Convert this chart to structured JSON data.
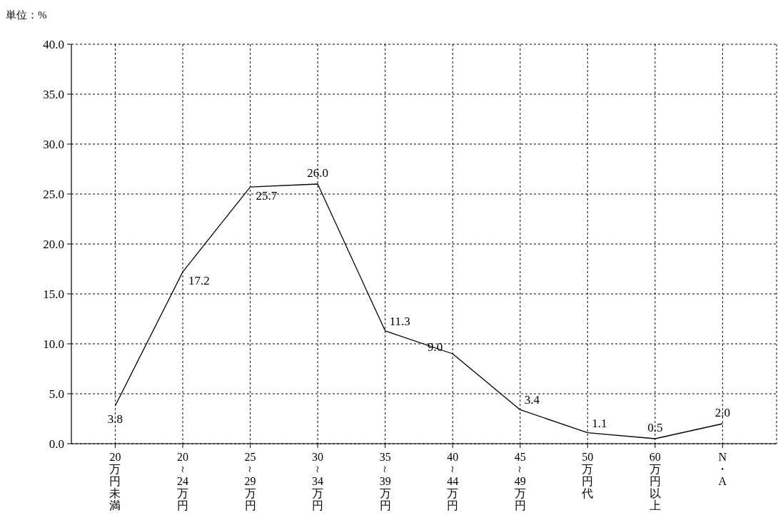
{
  "chart_data": {
    "type": "line",
    "ylabel": "単位：%",
    "categories": [
      "20万円未満",
      "20～24万円",
      "25～29万円",
      "30～34万円",
      "35～39万円",
      "40～44万円",
      "45～49万円",
      "50万円代",
      "60万円以上",
      "N・A"
    ],
    "values": [
      3.8,
      17.2,
      25.7,
      26.0,
      11.3,
      9.0,
      3.4,
      1.1,
      0.5,
      2.0
    ],
    "value_labels": [
      "3.8",
      "17.2",
      "25.7",
      "26.0",
      "11.3",
      "9.0",
      "3.4",
      "1.1",
      "0.5",
      "2.0"
    ],
    "color": "#000000",
    "marker": "none",
    "line_style": "solid",
    "grid": true,
    "ylim": [
      0,
      40
    ],
    "yticks": [
      {
        "value": 0,
        "label": "0.0"
      },
      {
        "value": 5,
        "label": "5.0"
      },
      {
        "value": 10,
        "label": "10.0"
      },
      {
        "value": 15,
        "label": "15.0"
      },
      {
        "value": 20,
        "label": "20.0"
      },
      {
        "value": 25,
        "label": "25.0"
      },
      {
        "value": 30,
        "label": "30.0"
      },
      {
        "value": 35,
        "label": "35.0"
      },
      {
        "value": 40,
        "label": "40.0"
      }
    ]
  }
}
